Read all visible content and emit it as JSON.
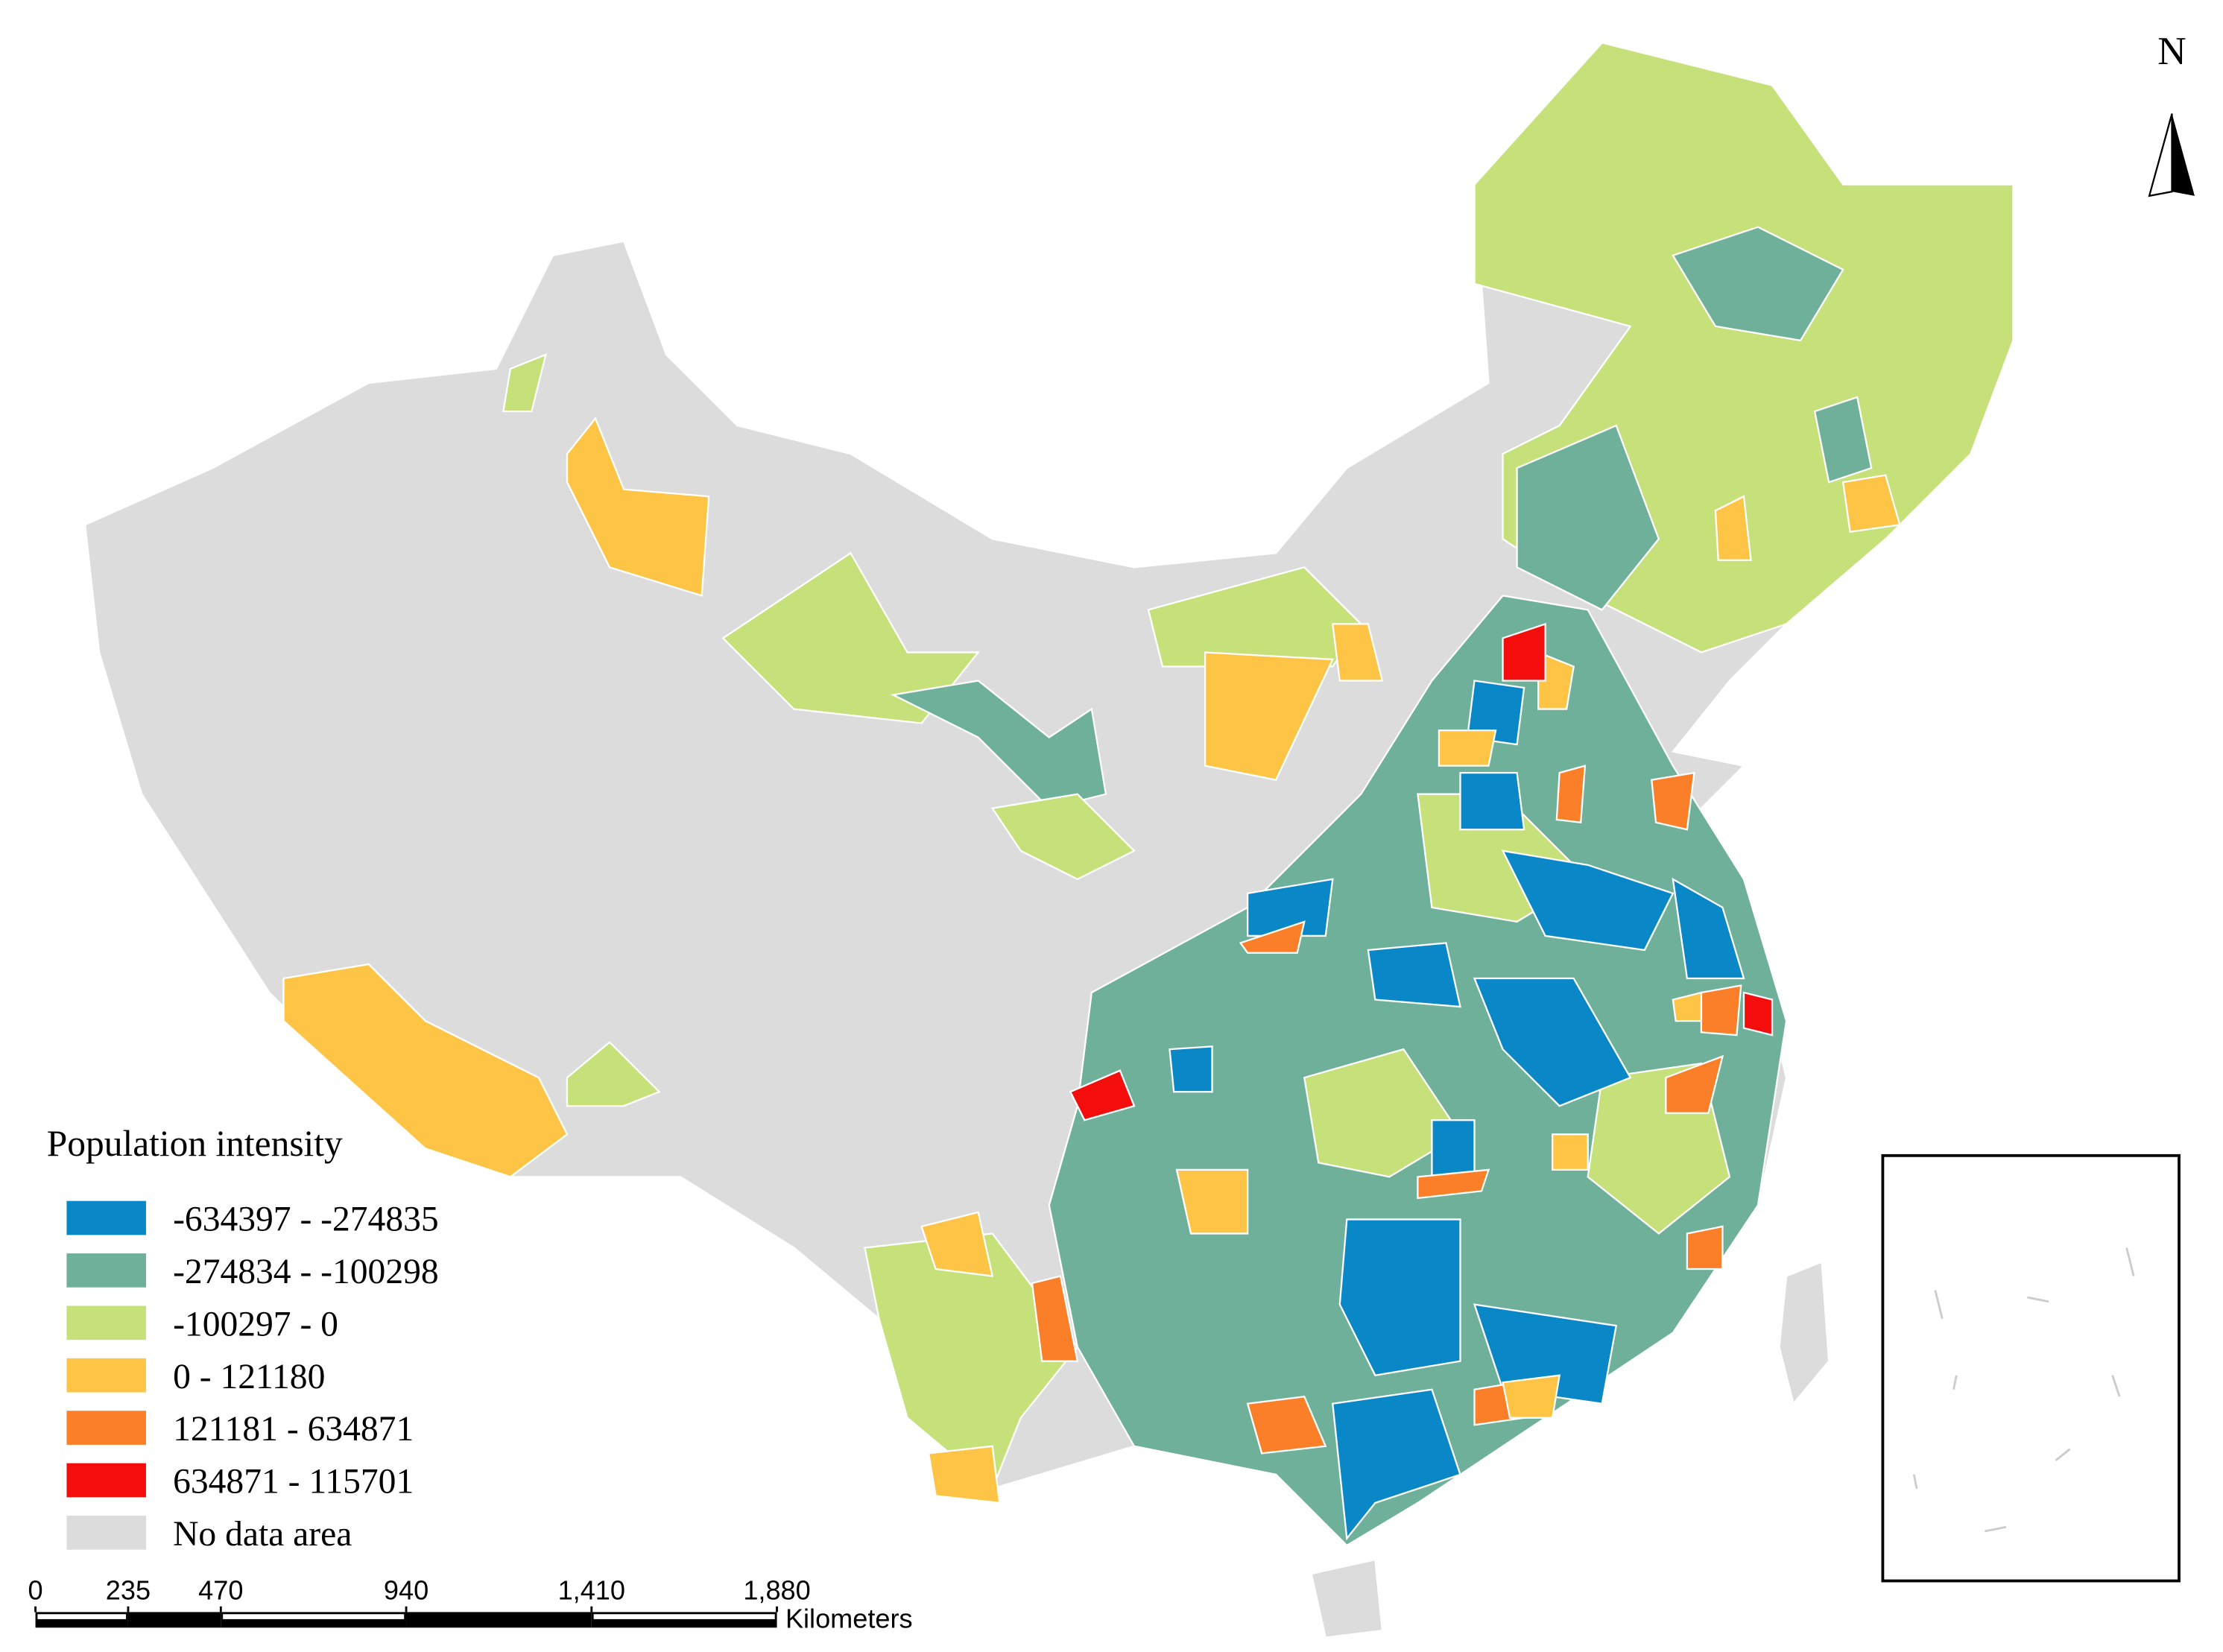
{
  "legend": {
    "title": "Population intensity",
    "items": [
      {
        "label": "-634397   - -274835",
        "color": "#0a87c7"
      },
      {
        "label": "-274834   - -100298",
        "color": "#6fb09a"
      },
      {
        "label": "-100297   - 0",
        "color": "#c6e07a"
      },
      {
        "label": "0 - 121180",
        "color": "#fec445"
      },
      {
        "label": "121181   - 634871",
        "color": "#fb7e28"
      },
      {
        "label": "634871   - 115701",
        "color": "#f30d0d"
      },
      {
        "label": "No  data area",
        "color": "#dcdcdc"
      }
    ]
  },
  "north_arrow": {
    "label": "N"
  },
  "scale_bar": {
    "ticks": [
      {
        "value": 0,
        "label": "0"
      },
      {
        "value": 235,
        "label": "235"
      },
      {
        "value": 470,
        "label": "470"
      },
      {
        "value": 940,
        "label": "940"
      },
      {
        "value": 1410,
        "label": "1,410"
      },
      {
        "value": 1880,
        "label": "1,880"
      }
    ],
    "unit": "Kilometers"
  }
}
